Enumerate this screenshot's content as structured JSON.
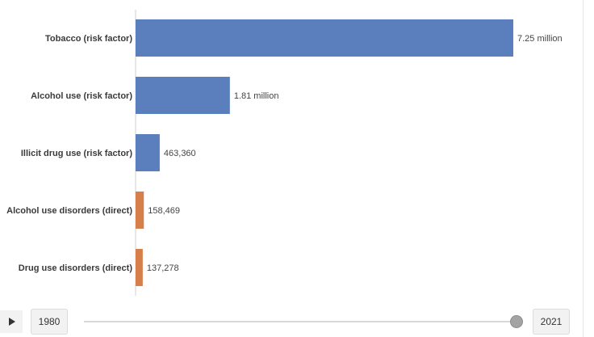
{
  "chart_data": {
    "type": "bar",
    "orientation": "horizontal",
    "categories": [
      "Tobacco (risk factor)",
      "Alcohol use (risk factor)",
      "Illicit drug use (risk factor)",
      "Alcohol use disorders (direct)",
      "Drug use disorders (direct)"
    ],
    "values": [
      7250000,
      1810000,
      463360,
      158469,
      137278
    ],
    "value_labels": [
      "7.25 million",
      "1.81 million",
      "463,360",
      "158,469",
      "137,278"
    ],
    "colors": [
      "#5b7fbd",
      "#5b7fbd",
      "#5b7fbd",
      "#d67f4a",
      "#d67f4a"
    ],
    "xlim": [
      0,
      7250000
    ],
    "grid": false
  },
  "timeline": {
    "start_year": "1980",
    "end_year": "2021",
    "selected_year": "2021"
  },
  "colors": {
    "risk_factor": "#5b7fbd",
    "direct": "#d67f4a",
    "axis": "#d0d0d0"
  }
}
